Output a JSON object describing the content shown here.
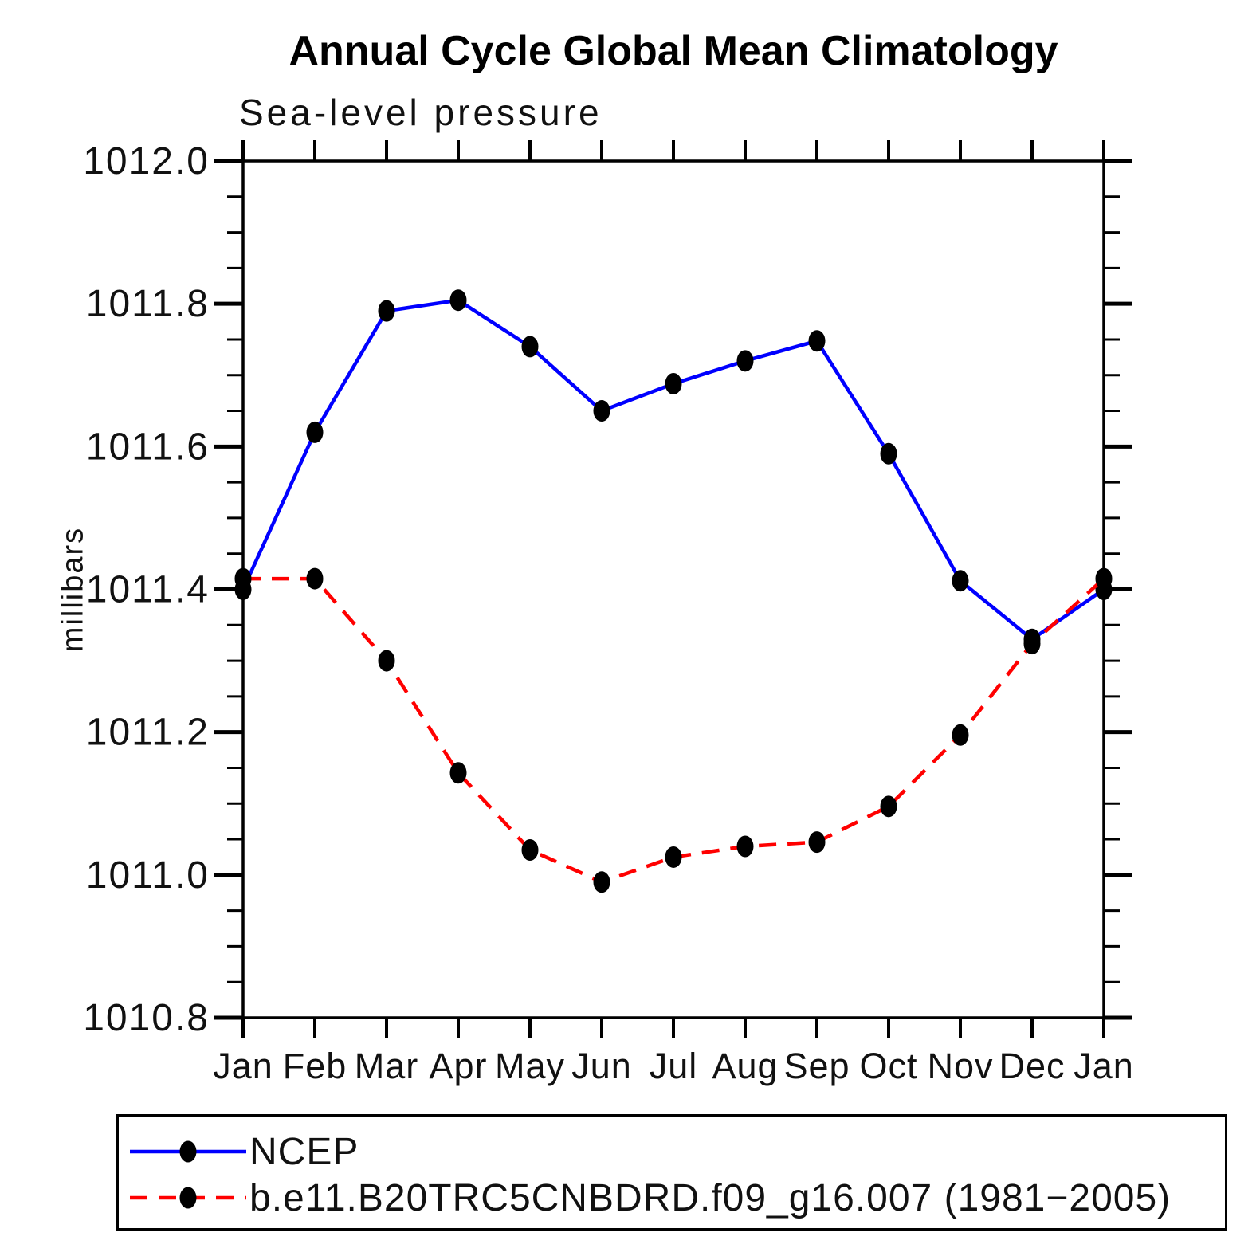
{
  "title": "Annual Cycle Global Mean Climatology",
  "subtitle": "Sea-level pressure",
  "ylabel": "millibars",
  "chart_data": {
    "type": "line",
    "categories": [
      "Jan",
      "Feb",
      "Mar",
      "Apr",
      "May",
      "Jun",
      "Jul",
      "Aug",
      "Sep",
      "Oct",
      "Nov",
      "Dec",
      "Jan"
    ],
    "series": [
      {
        "name": "NCEP",
        "color": "#0000ff",
        "style": "solid",
        "values": [
          1011.4,
          1011.62,
          1011.79,
          1011.805,
          1011.74,
          1011.65,
          1011.688,
          1011.72,
          1011.748,
          1011.59,
          1011.412,
          1011.33,
          1011.4
        ]
      },
      {
        "name": "b.e11.B20TRC5CNBDRD.f09_g16.007 (1981−2005)",
        "color": "#ff0000",
        "style": "dashed",
        "values": [
          1011.415,
          1011.415,
          1011.3,
          1011.143,
          1011.035,
          1010.99,
          1011.025,
          1011.04,
          1011.046,
          1011.096,
          1011.196,
          1011.324,
          1011.415
        ]
      }
    ],
    "ylim": [
      1010.8,
      1012.0
    ],
    "ytick_major": 0.2,
    "ytick_minor": 0.05,
    "marker": "filled-circle",
    "marker_color": "#000000",
    "grid": "off",
    "legend_position": "bottom"
  }
}
